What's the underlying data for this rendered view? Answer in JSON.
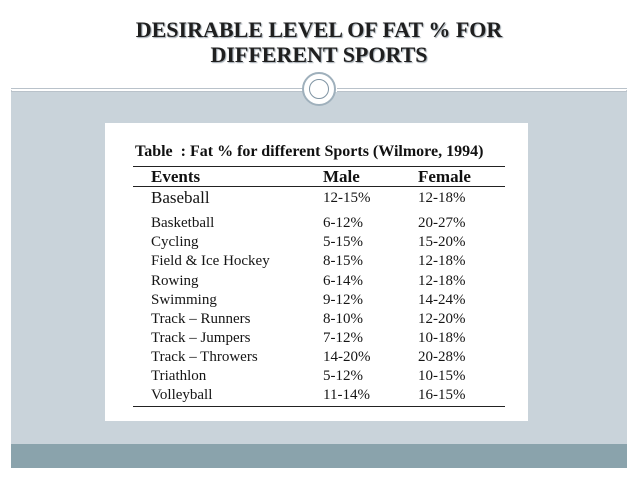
{
  "slide": {
    "title_line1": "DESIRABLE LEVEL OF FAT % FOR",
    "title_line2": "DIFFERENT SPORTS"
  },
  "table": {
    "caption_label": "Table",
    "caption_text": ": Fat % for different Sports (Wilmore, 1994)",
    "columns": [
      "Events",
      "Male",
      "Female"
    ],
    "rows": [
      {
        "event": "Baseball",
        "male": "12-15%",
        "female": "12-18%"
      },
      {
        "event": "Basketball",
        "male": "6-12%",
        "female": "20-27%"
      },
      {
        "event": "Cycling",
        "male": "5-15%",
        "female": "15-20%"
      },
      {
        "event": "Field & Ice Hockey",
        "male": "8-15%",
        "female": "12-18%"
      },
      {
        "event": "Rowing",
        "male": "6-14%",
        "female": "12-18%"
      },
      {
        "event": "Swimming",
        "male": "9-12%",
        "female": "14-24%"
      },
      {
        "event": "Track – Runners",
        "male": "8-10%",
        "female": "12-20%"
      },
      {
        "event": "Track – Jumpers",
        "male": "7-12%",
        "female": "10-18%"
      },
      {
        "event": "Track – Throwers",
        "male": "14-20%",
        "female": "20-28%"
      },
      {
        "event": "Triathlon",
        "male": "5-12%",
        "female": "10-15%"
      },
      {
        "event": "Volleyball",
        "male": "11-14%",
        "female": "16-15%"
      }
    ]
  },
  "colors": {
    "content_background": "#c9d3da",
    "footer_bar": "#8aa3ac"
  }
}
